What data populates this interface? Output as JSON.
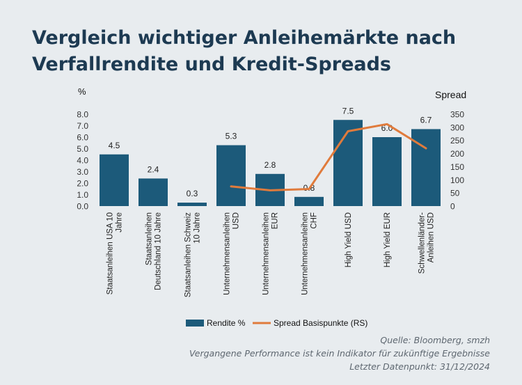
{
  "title_line1": "Vergleich wichtiger Anleihemärkte nach",
  "title_line2": "Verfallrendite und Kredit-Spreads",
  "source_lines": [
    "Quelle: Bloomberg, smzh",
    "Vergangene Performance ist kein Indikator für zukünftige Ergebnisse",
    "Letzter Datenpunkt: 31/12/2024"
  ],
  "colors": {
    "background": "#e8ecef",
    "bar": "#1c5a7a",
    "line": "#e07b3c",
    "title": "#1d3a52"
  },
  "chart_data": {
    "type": "bar",
    "categories": [
      [
        "Staatsanleihen USA 10",
        "Jahre"
      ],
      [
        "Staatsanleihen",
        "Deutschland 10 Jahre"
      ],
      [
        "Staatsanleihen Schweiz",
        "10 Jahre"
      ],
      [
        "Unternehmensanleihen",
        "USD"
      ],
      [
        "Unternehmensanleihen",
        "EUR"
      ],
      [
        "Unternehmensanleihen",
        "CHF"
      ],
      [
        "High Yield USD"
      ],
      [
        "High Yield EUR"
      ],
      [
        "Schwellenländer-",
        "Anleihen USD"
      ]
    ],
    "series": [
      {
        "name": "Rendite %",
        "type": "bar",
        "axis": "left",
        "values": [
          4.5,
          2.4,
          0.3,
          5.3,
          2.8,
          0.8,
          7.5,
          6.0,
          6.7
        ],
        "labels": [
          "4.5",
          "2.4",
          "0.3",
          "5.3",
          "2.8",
          "0.8",
          "7.5",
          "6.0",
          "6.7"
        ]
      },
      {
        "name": "Spread Basispunkte (RS)",
        "type": "line",
        "axis": "right",
        "values": [
          null,
          null,
          null,
          75,
          60,
          65,
          285,
          312,
          220
        ]
      }
    ],
    "ylabel": "%",
    "y2label": "Spread",
    "ylim": [
      0,
      8
    ],
    "y2lim": [
      0,
      350
    ],
    "yticks": [
      "0.0",
      "1.0",
      "2.0",
      "3.0",
      "4.0",
      "5.0",
      "6.0",
      "7.0",
      "8.0"
    ],
    "y2ticks": [
      "0",
      "50",
      "100",
      "150",
      "200",
      "250",
      "300",
      "350"
    ],
    "legend_position": "bottom",
    "grid": false
  }
}
